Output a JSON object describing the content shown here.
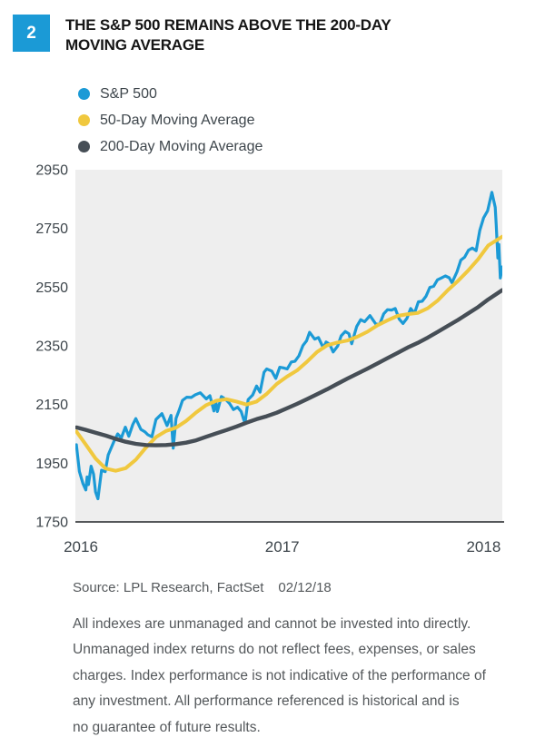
{
  "figure_number": "2",
  "title_line1": "THE S&P 500 REMAINS ABOVE THE 200-DAY",
  "title_line2": "MOVING AVERAGE",
  "legend": [
    {
      "label": "S&P 500",
      "color": "#1b9ad6"
    },
    {
      "label": "50-Day Moving Average",
      "color": "#f0c83e"
    },
    {
      "label": "200-Day Moving Average",
      "color": "#464e56"
    }
  ],
  "source_label": "Source: LPL Research, FactSet",
  "source_date": "02/12/18",
  "disclaimer_lines": [
    "All indexes are unmanaged and cannot be invested into directly.",
    "Unmanaged index returns do not reflect fees, expenses, or sales",
    "charges. Index performance is not indicative of the performance of",
    "any investment. All performance referenced is historical and is",
    "no guarantee of future results."
  ],
  "colors": {
    "accent_blue": "#1b9ad6",
    "sp500_line": "#1b9ad6",
    "ma50_line": "#f0c83e",
    "ma200_line": "#464e56",
    "plot_background": "#eeeeee",
    "axis_line": "#55575a",
    "axis_text": "#3d454b",
    "body_text": "#54585b",
    "title_text": "#161616"
  },
  "chart_data": {
    "type": "line",
    "title": "THE S&P 500 REMAINS ABOVE THE 200-DAY MOVING AVERAGE",
    "xlabel": "",
    "ylabel": "",
    "x_range": [
      2016.0,
      2018.12
    ],
    "y_range": [
      1750,
      2950
    ],
    "y_ticks": [
      1750,
      1950,
      2150,
      2350,
      2550,
      2750,
      2950
    ],
    "x_ticks": [
      2016,
      2017,
      2018
    ],
    "grid": false,
    "legend_position": "top-left",
    "series": [
      {
        "name": "S&P 500",
        "color": "#1b9ad6",
        "stroke_width": 3.2,
        "points": [
          [
            2016.005,
            2013
          ],
          [
            2016.02,
            1922
          ],
          [
            2016.038,
            1880
          ],
          [
            2016.052,
            1859
          ],
          [
            2016.058,
            1903
          ],
          [
            2016.065,
            1877
          ],
          [
            2016.078,
            1940
          ],
          [
            2016.09,
            1913
          ],
          [
            2016.1,
            1852
          ],
          [
            2016.112,
            1829
          ],
          [
            2016.13,
            1926
          ],
          [
            2016.148,
            1921
          ],
          [
            2016.163,
            1978
          ],
          [
            2016.19,
            2022
          ],
          [
            2016.21,
            2050
          ],
          [
            2016.228,
            2036
          ],
          [
            2016.248,
            2073
          ],
          [
            2016.265,
            2042
          ],
          [
            2016.285,
            2082
          ],
          [
            2016.3,
            2102
          ],
          [
            2016.325,
            2065
          ],
          [
            2016.345,
            2057
          ],
          [
            2016.36,
            2047
          ],
          [
            2016.38,
            2040
          ],
          [
            2016.4,
            2099
          ],
          [
            2016.43,
            2119
          ],
          [
            2016.455,
            2078
          ],
          [
            2016.475,
            2113
          ],
          [
            2016.486,
            2001
          ],
          [
            2016.5,
            2103
          ],
          [
            2016.515,
            2130
          ],
          [
            2016.532,
            2164
          ],
          [
            2016.553,
            2175
          ],
          [
            2016.575,
            2174
          ],
          [
            2016.595,
            2183
          ],
          [
            2016.62,
            2190
          ],
          [
            2016.65,
            2169
          ],
          [
            2016.668,
            2180
          ],
          [
            2016.688,
            2128
          ],
          [
            2016.698,
            2159
          ],
          [
            2016.705,
            2126
          ],
          [
            2016.725,
            2177
          ],
          [
            2016.745,
            2168
          ],
          [
            2016.765,
            2154
          ],
          [
            2016.785,
            2133
          ],
          [
            2016.805,
            2141
          ],
          [
            2016.823,
            2126
          ],
          [
            2016.842,
            2085
          ],
          [
            2016.858,
            2167
          ],
          [
            2016.88,
            2182
          ],
          [
            2016.9,
            2213
          ],
          [
            2016.917,
            2192
          ],
          [
            2016.937,
            2260
          ],
          [
            2016.95,
            2271
          ],
          [
            2016.975,
            2264
          ],
          [
            2016.995,
            2239
          ],
          [
            2017.015,
            2277
          ],
          [
            2017.033,
            2275
          ],
          [
            2017.052,
            2271
          ],
          [
            2017.072,
            2295
          ],
          [
            2017.09,
            2297
          ],
          [
            2017.11,
            2316
          ],
          [
            2017.13,
            2351
          ],
          [
            2017.148,
            2367
          ],
          [
            2017.163,
            2396
          ],
          [
            2017.188,
            2373
          ],
          [
            2017.207,
            2378
          ],
          [
            2017.232,
            2342
          ],
          [
            2017.245,
            2363
          ],
          [
            2017.263,
            2355
          ],
          [
            2017.28,
            2329
          ],
          [
            2017.302,
            2349
          ],
          [
            2017.32,
            2384
          ],
          [
            2017.34,
            2399
          ],
          [
            2017.358,
            2391
          ],
          [
            2017.372,
            2357
          ],
          [
            2017.397,
            2416
          ],
          [
            2017.417,
            2439
          ],
          [
            2017.436,
            2432
          ],
          [
            2017.463,
            2453
          ],
          [
            2017.493,
            2423
          ],
          [
            2017.512,
            2425
          ],
          [
            2017.531,
            2459
          ],
          [
            2017.55,
            2473
          ],
          [
            2017.57,
            2472
          ],
          [
            2017.588,
            2477
          ],
          [
            2017.608,
            2441
          ],
          [
            2017.627,
            2426
          ],
          [
            2017.646,
            2443
          ],
          [
            2017.665,
            2477
          ],
          [
            2017.684,
            2461
          ],
          [
            2017.703,
            2500
          ],
          [
            2017.722,
            2502
          ],
          [
            2017.741,
            2519
          ],
          [
            2017.76,
            2549
          ],
          [
            2017.779,
            2553
          ],
          [
            2017.798,
            2575
          ],
          [
            2017.817,
            2581
          ],
          [
            2017.837,
            2588
          ],
          [
            2017.856,
            2582
          ],
          [
            2017.87,
            2565
          ],
          [
            2017.895,
            2602
          ],
          [
            2017.914,
            2642
          ],
          [
            2017.933,
            2652
          ],
          [
            2017.952,
            2676
          ],
          [
            2017.971,
            2683
          ],
          [
            2017.99,
            2674
          ],
          [
            2018.008,
            2743
          ],
          [
            2018.027,
            2786
          ],
          [
            2018.047,
            2810
          ],
          [
            2018.068,
            2873
          ],
          [
            2018.085,
            2822
          ],
          [
            2018.09,
            2762
          ],
          [
            2018.098,
            2649
          ],
          [
            2018.103,
            2695
          ],
          [
            2018.11,
            2581
          ],
          [
            2018.12,
            2619
          ]
        ]
      },
      {
        "name": "50-Day Moving Average",
        "color": "#f0c83e",
        "stroke_width": 4,
        "points": [
          [
            2016.005,
            2058
          ],
          [
            2016.05,
            2015
          ],
          [
            2016.1,
            1966
          ],
          [
            2016.15,
            1932
          ],
          [
            2016.2,
            1924
          ],
          [
            2016.25,
            1933
          ],
          [
            2016.3,
            1962
          ],
          [
            2016.35,
            2003
          ],
          [
            2016.4,
            2039
          ],
          [
            2016.45,
            2060
          ],
          [
            2016.5,
            2071
          ],
          [
            2016.55,
            2094
          ],
          [
            2016.6,
            2123
          ],
          [
            2016.65,
            2148
          ],
          [
            2016.7,
            2163
          ],
          [
            2016.75,
            2168
          ],
          [
            2016.8,
            2160
          ],
          [
            2016.85,
            2150
          ],
          [
            2016.9,
            2160
          ],
          [
            2016.95,
            2186
          ],
          [
            2017.0,
            2220
          ],
          [
            2017.05,
            2245
          ],
          [
            2017.1,
            2266
          ],
          [
            2017.15,
            2296
          ],
          [
            2017.2,
            2329
          ],
          [
            2017.25,
            2352
          ],
          [
            2017.3,
            2361
          ],
          [
            2017.35,
            2368
          ],
          [
            2017.4,
            2381
          ],
          [
            2017.45,
            2398
          ],
          [
            2017.5,
            2420
          ],
          [
            2017.55,
            2437
          ],
          [
            2017.6,
            2452
          ],
          [
            2017.65,
            2458
          ],
          [
            2017.7,
            2462
          ],
          [
            2017.75,
            2478
          ],
          [
            2017.8,
            2505
          ],
          [
            2017.85,
            2540
          ],
          [
            2017.9,
            2571
          ],
          [
            2017.95,
            2606
          ],
          [
            2018.0,
            2645
          ],
          [
            2018.05,
            2692
          ],
          [
            2018.12,
            2722
          ]
        ]
      },
      {
        "name": "200-Day Moving Average",
        "color": "#464e56",
        "stroke_width": 4.4,
        "points": [
          [
            2016.005,
            2072
          ],
          [
            2016.05,
            2064
          ],
          [
            2016.1,
            2054
          ],
          [
            2016.15,
            2044
          ],
          [
            2016.2,
            2033
          ],
          [
            2016.25,
            2023
          ],
          [
            2016.3,
            2016
          ],
          [
            2016.35,
            2012
          ],
          [
            2016.4,
            2011
          ],
          [
            2016.45,
            2012
          ],
          [
            2016.5,
            2015
          ],
          [
            2016.55,
            2020
          ],
          [
            2016.6,
            2028
          ],
          [
            2016.65,
            2040
          ],
          [
            2016.7,
            2052
          ],
          [
            2016.75,
            2063
          ],
          [
            2016.8,
            2075
          ],
          [
            2016.85,
            2088
          ],
          [
            2016.9,
            2100
          ],
          [
            2016.95,
            2110
          ],
          [
            2017.0,
            2122
          ],
          [
            2017.05,
            2137
          ],
          [
            2017.1,
            2152
          ],
          [
            2017.15,
            2168
          ],
          [
            2017.2,
            2185
          ],
          [
            2017.25,
            2202
          ],
          [
            2017.3,
            2220
          ],
          [
            2017.35,
            2238
          ],
          [
            2017.4,
            2255
          ],
          [
            2017.45,
            2272
          ],
          [
            2017.5,
            2290
          ],
          [
            2017.55,
            2308
          ],
          [
            2017.6,
            2326
          ],
          [
            2017.65,
            2344
          ],
          [
            2017.7,
            2360
          ],
          [
            2017.75,
            2378
          ],
          [
            2017.8,
            2398
          ],
          [
            2017.85,
            2418
          ],
          [
            2017.9,
            2438
          ],
          [
            2017.95,
            2460
          ],
          [
            2018.0,
            2482
          ],
          [
            2018.05,
            2508
          ],
          [
            2018.12,
            2540
          ]
        ]
      }
    ]
  }
}
